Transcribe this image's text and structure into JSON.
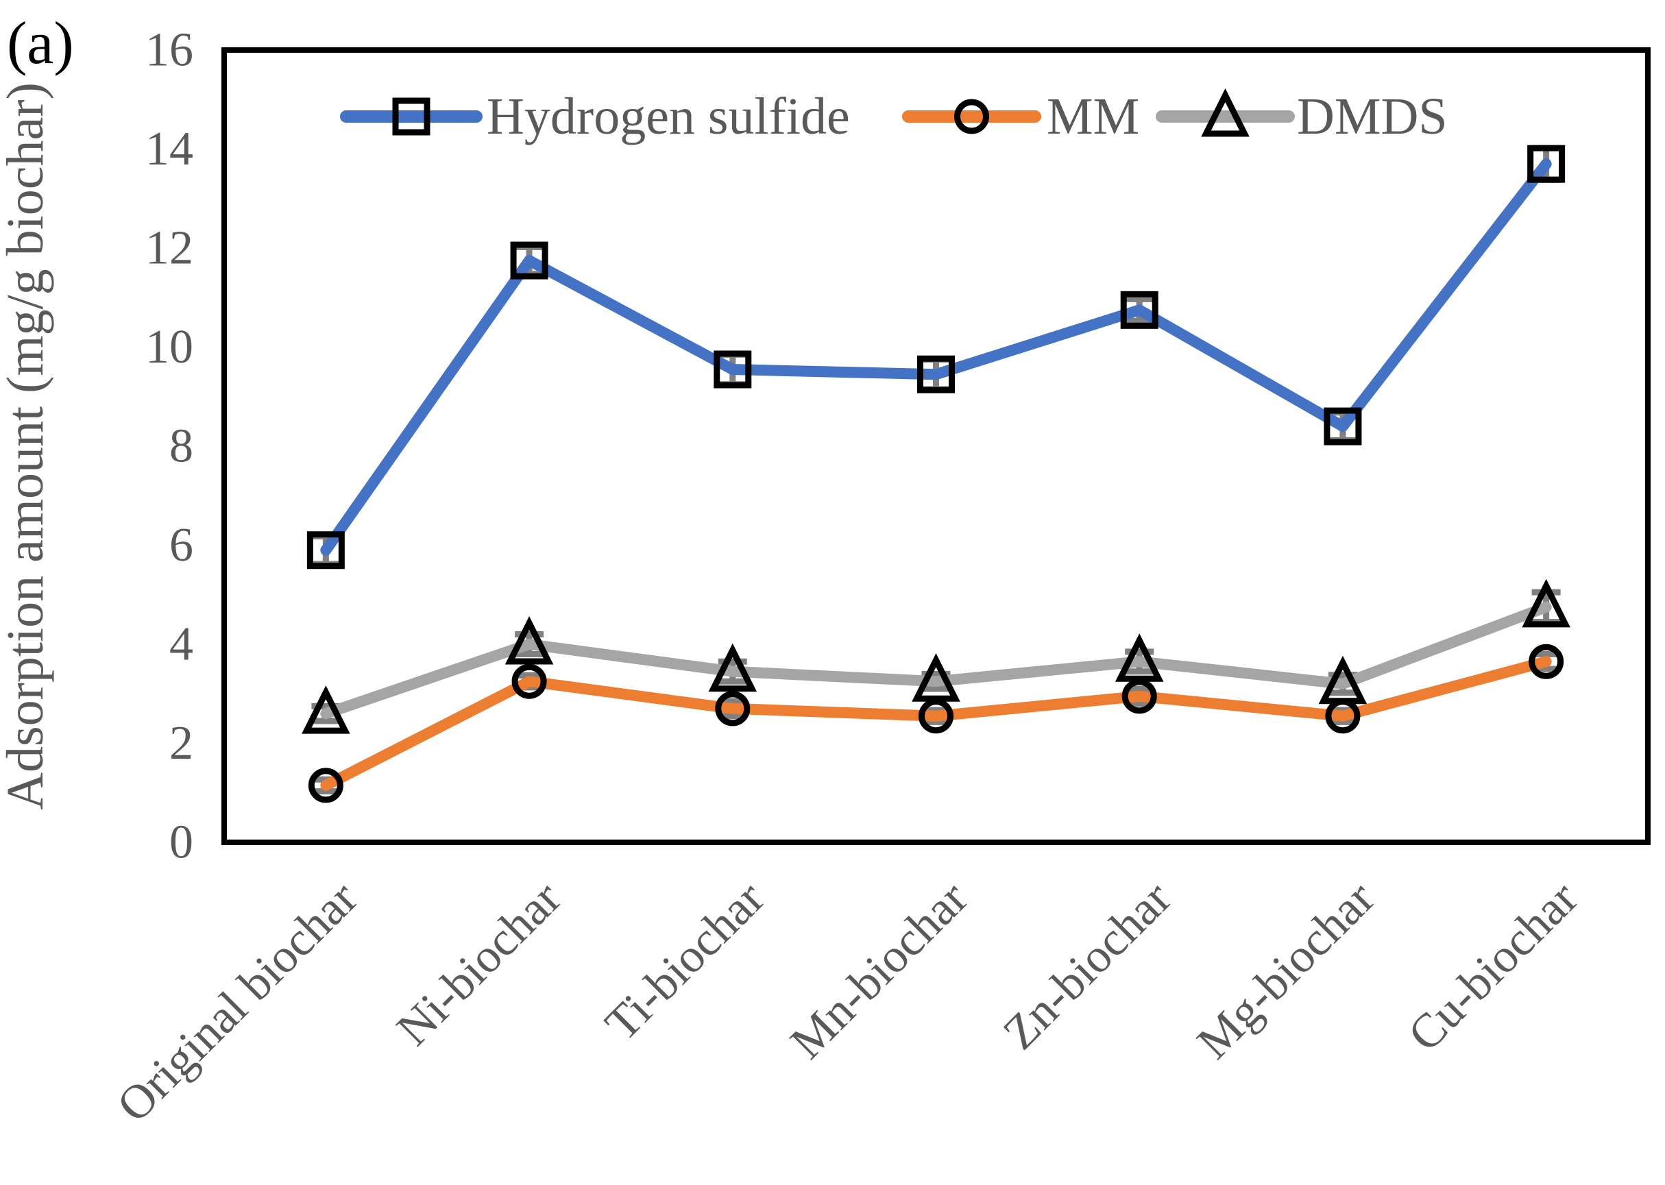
{
  "chart_data": {
    "type": "line",
    "panel_label": "(a)",
    "title": "",
    "xlabel": "",
    "ylabel": "Adsorption amount (mg/g biochar)",
    "ylim": [
      0,
      16
    ],
    "yticks": [
      0,
      2,
      4,
      6,
      8,
      10,
      12,
      14,
      16
    ],
    "grid": false,
    "legend": {
      "position": "top-inside",
      "orientation": "horizontal"
    },
    "categories": [
      "Original biochar",
      "Ni-biochar",
      "Ti-biochar",
      "Mn-biochar",
      "Zn-biochar",
      "Mg-biochar",
      "Cu-biochar"
    ],
    "series": [
      {
        "name": "Hydrogen sulfide",
        "marker": "square",
        "color": "#4472C4",
        "values": [
          5.9,
          11.75,
          9.55,
          9.45,
          10.75,
          8.4,
          13.7
        ],
        "errors": [
          0.28,
          0.27,
          0.3,
          0.3,
          0.22,
          0.28,
          0.32
        ]
      },
      {
        "name": "MM",
        "marker": "circle",
        "color": "#ED7D31",
        "values": [
          1.15,
          3.25,
          2.7,
          2.55,
          2.95,
          2.55,
          3.65
        ],
        "errors": [
          0.12,
          0.12,
          0.15,
          0.12,
          0.15,
          0.12,
          0.15
        ]
      },
      {
        "name": "DMDS",
        "marker": "triangle",
        "color": "#A5A5A5",
        "values": [
          2.6,
          4.0,
          3.45,
          3.25,
          3.65,
          3.2,
          4.75
        ],
        "errors": [
          0.15,
          0.2,
          0.2,
          0.15,
          0.2,
          0.18,
          0.3
        ]
      }
    ],
    "styles": {
      "axis_text_color": "#595959",
      "panel_label_color": "#000000",
      "border_color": "#000000",
      "marker_stroke_color": "#000000",
      "error_bar_color": "#808080",
      "background": "#ffffff"
    }
  }
}
